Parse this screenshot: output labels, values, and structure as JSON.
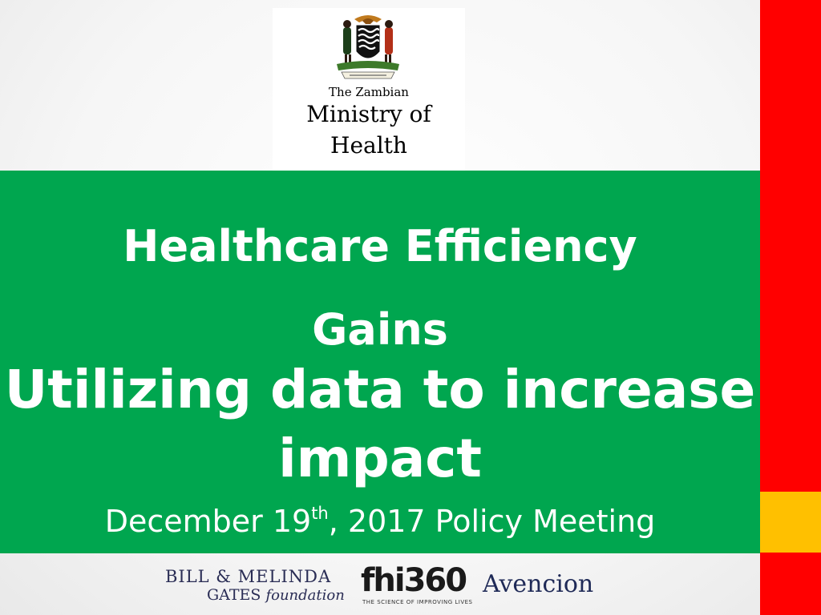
{
  "logo": {
    "line1": "The Zambian",
    "line2": "Ministry of",
    "line3": "Health"
  },
  "title": {
    "line1": "Healthcare Efficiency",
    "line2": "Gains"
  },
  "subtitle": {
    "line1": "Utilizing data to increase",
    "line2": "impact"
  },
  "date": {
    "prefix": "December 19",
    "superscript": "th",
    "suffix": ", 2017 Policy Meeting"
  },
  "sponsors": {
    "gates_line1": "BILL & MELINDA",
    "gates_line2_a": "GATES ",
    "gates_line2_b": "foundation",
    "fhi_mark_a": "fhi",
    "fhi_mark_b": "360",
    "fhi_tagline": "THE SCIENCE OF IMPROVING LIVES",
    "avencion": "Avencion"
  },
  "colors": {
    "band_green": "#00a64f",
    "stripe_red": "#ff0000",
    "stripe_orange": "#ffc000"
  },
  "icons": {
    "crest": "zambia-coat-of-arms"
  }
}
